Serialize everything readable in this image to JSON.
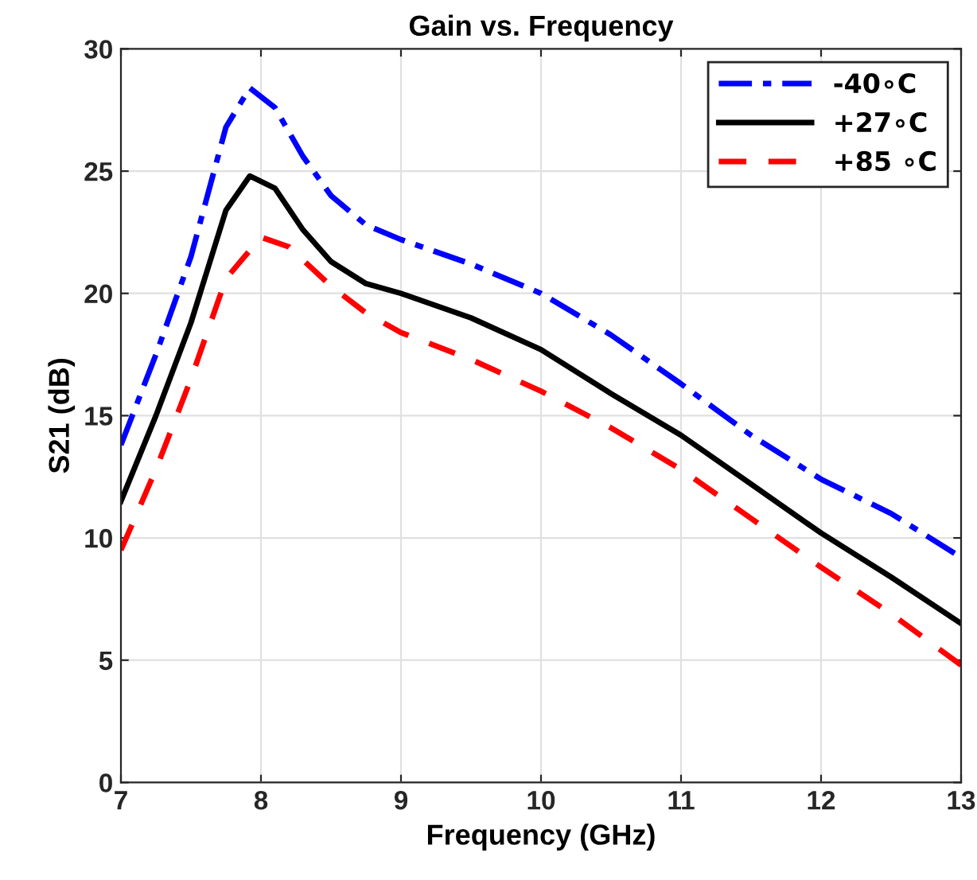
{
  "chart_data": {
    "type": "line",
    "title": "Gain vs. Frequency",
    "xlabel": "Frequency (GHz)",
    "ylabel": "S21 (dB)",
    "xlim": [
      7,
      13
    ],
    "xticks": [
      7,
      8,
      9,
      10,
      11,
      12,
      13
    ],
    "ylim": [
      0,
      30
    ],
    "yticks": [
      0,
      5,
      10,
      15,
      20,
      25,
      30
    ],
    "grid": true,
    "legend": "top right",
    "series": [
      {
        "name": "-40∘C",
        "color": "#0000ff",
        "line_style": "dashdot",
        "x": [
          7,
          7.25,
          7.5,
          7.75,
          7.92,
          8.1,
          8.3,
          8.5,
          8.75,
          9,
          9.5,
          10,
          10.5,
          11,
          11.5,
          12,
          12.5,
          13
        ],
        "values": [
          13.8,
          17.5,
          21.5,
          26.8,
          28.4,
          27.6,
          25.6,
          24.0,
          22.8,
          22.2,
          21.2,
          20.0,
          18.3,
          16.3,
          14.2,
          12.4,
          11.0,
          9.2
        ]
      },
      {
        "name": "+27∘C",
        "color": "#000000",
        "line_style": "solid",
        "x": [
          7,
          7.25,
          7.5,
          7.75,
          7.92,
          8.1,
          8.3,
          8.5,
          8.75,
          9,
          9.5,
          10,
          10.5,
          11,
          11.5,
          12,
          12.5,
          13
        ],
        "values": [
          11.5,
          15.0,
          18.8,
          23.4,
          24.8,
          24.3,
          22.6,
          21.3,
          20.4,
          20.0,
          19.0,
          17.7,
          15.9,
          14.2,
          12.2,
          10.2,
          8.4,
          6.5
        ]
      },
      {
        "name": "+85 ∘C",
        "color": "#ff0000",
        "line_style": "dashed",
        "x": [
          7,
          7.25,
          7.5,
          7.75,
          8,
          8.2,
          8.5,
          8.75,
          9,
          9.5,
          10,
          10.5,
          11,
          11.5,
          12,
          12.5,
          13
        ],
        "values": [
          9.5,
          12.8,
          16.5,
          20.6,
          22.3,
          21.9,
          20.3,
          19.2,
          18.4,
          17.3,
          16.0,
          14.5,
          12.8,
          10.8,
          8.8,
          6.9,
          4.8
        ]
      }
    ]
  }
}
